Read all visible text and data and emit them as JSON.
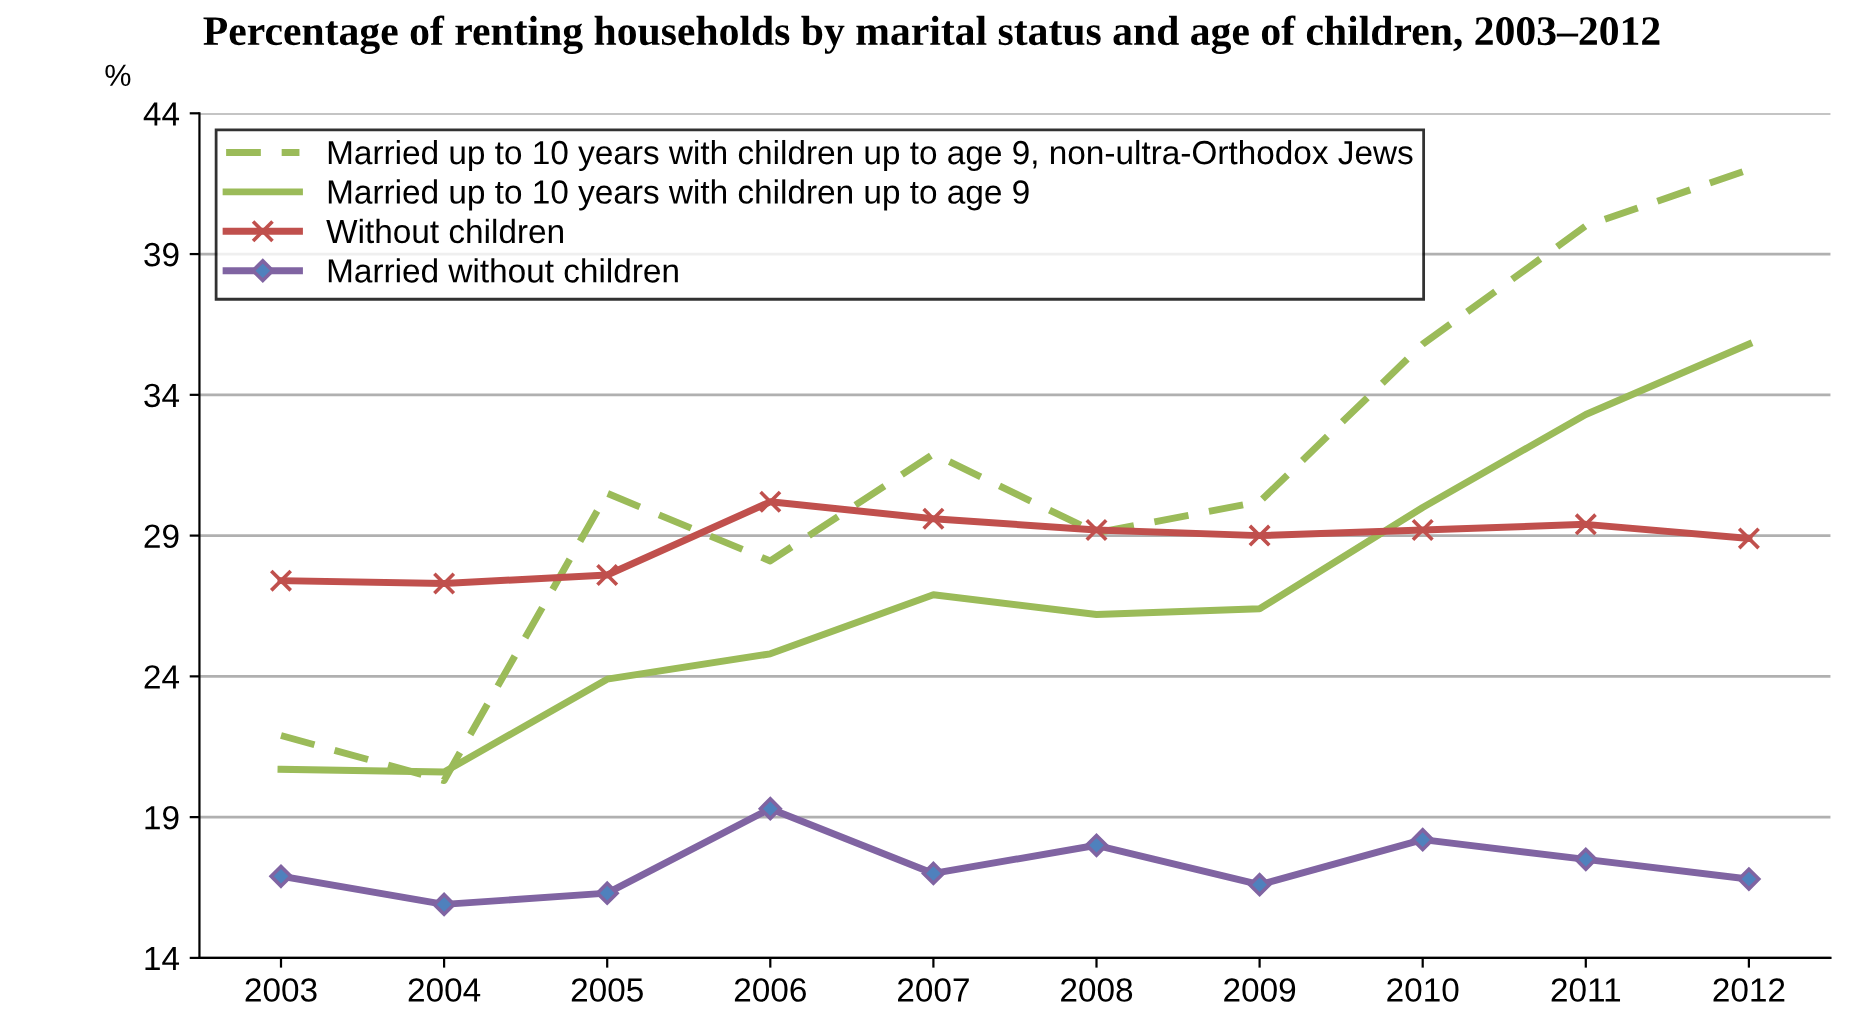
{
  "chart_data": {
    "type": "line",
    "title": "Percentage of renting households by marital status and age of children, 2003–2012",
    "ylabel": "%",
    "categories": [
      "2003",
      "2004",
      "2005",
      "2006",
      "2007",
      "2008",
      "2009",
      "2010",
      "2011",
      "2012"
    ],
    "series": [
      {
        "name": "Married up to 10 years with children up to age 9, non-ultra-Orthodox Jews",
        "color": "#9bbb59",
        "line_style": "dashed",
        "marker": "none",
        "values": [
          21.9,
          20.3,
          30.5,
          28.1,
          31.9,
          29.1,
          30.2,
          35.8,
          40.0,
          42.0
        ]
      },
      {
        "name": "Married up to 10 years with children up to age 9",
        "color": "#9bbb59",
        "line_style": "solid",
        "marker": "none",
        "values": [
          20.7,
          20.6,
          23.9,
          24.8,
          26.9,
          26.2,
          26.4,
          30.0,
          33.3,
          35.8
        ]
      },
      {
        "name": "Without children",
        "color": "#c0504d",
        "line_style": "solid",
        "marker": "cross",
        "values": [
          27.4,
          27.3,
          27.6,
          30.2,
          29.6,
          29.2,
          29.0,
          29.2,
          29.4,
          28.9
        ]
      },
      {
        "name": "Married without children",
        "color": "#8064a2",
        "line_style": "solid",
        "marker": "diamond",
        "values": [
          16.9,
          15.9,
          16.3,
          19.3,
          17.0,
          18.0,
          16.6,
          18.2,
          17.5,
          16.8
        ]
      }
    ],
    "ylim": [
      14,
      44
    ],
    "yticks": [
      14,
      19,
      24,
      29,
      34,
      39,
      44
    ],
    "grid": "y",
    "legend": "top left"
  }
}
